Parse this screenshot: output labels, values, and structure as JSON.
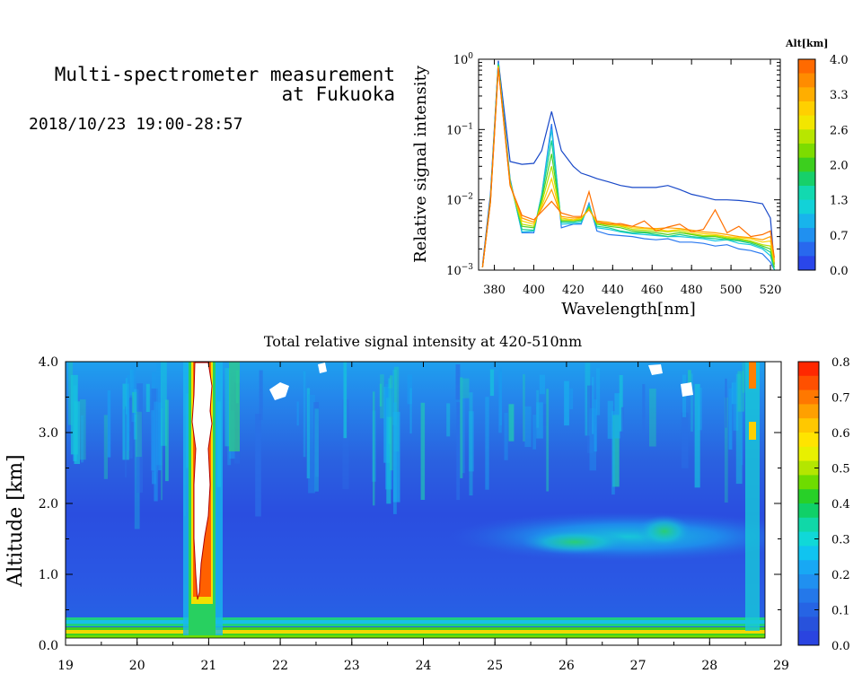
{
  "header": {
    "title_line1": "Multi-spectrometer measurement",
    "title_line2": "at Fukuoka",
    "datetime": "2018/10/23 19:00-28:57"
  },
  "chart_data": [
    {
      "type": "line",
      "xlabel": "Wavelength[nm]",
      "ylabel": "Relative signal intensity",
      "x_ticks": [
        "380",
        "400",
        "420",
        "440",
        "460",
        "480",
        "500",
        "520"
      ],
      "y_ticks": [
        "10^-3",
        "10^-2",
        "10^-1",
        "10^0"
      ],
      "y_scale": "log",
      "xlim": [
        372,
        525
      ],
      "ylim": [
        0.001,
        1
      ],
      "colorbar": {
        "title": "Alt[km]",
        "labels": [
          "4.0",
          "3.3",
          "2.6",
          "2.0",
          "1.3",
          "0.7",
          "0.0"
        ],
        "colors": [
          "#ff6a00",
          "#ff8c00",
          "#ffae00",
          "#ffd000",
          "#f2e600",
          "#b8e600",
          "#7ddc00",
          "#3ccf1e",
          "#17d06a",
          "#12d9b0",
          "#12d2d8",
          "#18b4ec",
          "#2090f0",
          "#2868ee",
          "#2a46ea"
        ]
      },
      "x": [
        374,
        378,
        382,
        388,
        394,
        400,
        404,
        409,
        414,
        420,
        424,
        428,
        432,
        438,
        444,
        450,
        456,
        462,
        468,
        474,
        480,
        486,
        492,
        498,
        504,
        510,
        516,
        520,
        522
      ],
      "series": [
        {
          "color": "#1848c8",
          "values": [
            0.0012,
            0.012,
            0.95,
            0.035,
            0.032,
            0.033,
            0.05,
            0.18,
            0.05,
            0.03,
            0.024,
            0.022,
            0.02,
            0.018,
            0.016,
            0.015,
            0.015,
            0.015,
            0.016,
            0.014,
            0.012,
            0.011,
            0.01,
            0.01,
            0.0098,
            0.0094,
            0.0088,
            0.0055,
            0.0012
          ]
        },
        {
          "color": "#2878f0",
          "values": [
            0.0011,
            0.01,
            0.9,
            0.02,
            0.0034,
            0.0034,
            0.012,
            0.12,
            0.004,
            0.0045,
            0.0045,
            0.009,
            0.0036,
            0.0032,
            0.0031,
            0.003,
            0.0028,
            0.0027,
            0.0028,
            0.0025,
            0.0025,
            0.0024,
            0.0022,
            0.0023,
            0.002,
            0.0019,
            0.0017,
            0.0013,
            0.001
          ]
        },
        {
          "color": "#18c8e0",
          "values": [
            0.0011,
            0.01,
            0.88,
            0.019,
            0.0035,
            0.0036,
            0.012,
            0.1,
            0.0045,
            0.0046,
            0.0047,
            0.0085,
            0.004,
            0.0038,
            0.0035,
            0.0033,
            0.0032,
            0.0031,
            0.003,
            0.003,
            0.0029,
            0.0028,
            0.0026,
            0.0027,
            0.0024,
            0.0023,
            0.002,
            0.0016,
            0.001
          ]
        },
        {
          "color": "#18d08c",
          "values": [
            0.0011,
            0.01,
            0.85,
            0.018,
            0.0038,
            0.0037,
            0.011,
            0.07,
            0.0048,
            0.0048,
            0.005,
            0.008,
            0.0042,
            0.004,
            0.0036,
            0.0034,
            0.0034,
            0.0032,
            0.003,
            0.0032,
            0.003,
            0.0029,
            0.0028,
            0.0027,
            0.0026,
            0.0024,
            0.0021,
            0.0018,
            0.001
          ]
        },
        {
          "color": "#50d020",
          "values": [
            0.0011,
            0.01,
            0.82,
            0.018,
            0.0042,
            0.004,
            0.01,
            0.045,
            0.005,
            0.005,
            0.0052,
            0.0078,
            0.0045,
            0.0042,
            0.004,
            0.0036,
            0.0035,
            0.0034,
            0.0032,
            0.0034,
            0.0032,
            0.003,
            0.003,
            0.0028,
            0.0027,
            0.0025,
            0.0022,
            0.002,
            0.0011
          ]
        },
        {
          "color": "#b8e000",
          "values": [
            0.0011,
            0.0095,
            0.8,
            0.017,
            0.0045,
            0.0042,
            0.009,
            0.03,
            0.0052,
            0.0051,
            0.0053,
            0.0075,
            0.0046,
            0.0044,
            0.0042,
            0.0038,
            0.0037,
            0.0036,
            0.0035,
            0.0036,
            0.0033,
            0.0031,
            0.0031,
            0.0029,
            0.0028,
            0.0026,
            0.0023,
            0.0022,
            0.0012
          ]
        },
        {
          "color": "#ffd000",
          "values": [
            0.0011,
            0.0095,
            0.78,
            0.017,
            0.005,
            0.0045,
            0.008,
            0.02,
            0.0055,
            0.0052,
            0.0055,
            0.0072,
            0.0048,
            0.0046,
            0.0043,
            0.004,
            0.0039,
            0.0038,
            0.0036,
            0.0038,
            0.0035,
            0.0033,
            0.0032,
            0.003,
            0.0029,
            0.0028,
            0.0025,
            0.0026,
            0.0013
          ]
        },
        {
          "color": "#ffa000",
          "values": [
            0.0011,
            0.0093,
            0.76,
            0.016,
            0.0055,
            0.0048,
            0.0075,
            0.014,
            0.0058,
            0.0055,
            0.0056,
            0.0072,
            0.005,
            0.0048,
            0.0044,
            0.0042,
            0.004,
            0.0039,
            0.004,
            0.0039,
            0.0037,
            0.0035,
            0.0034,
            0.0032,
            0.003,
            0.0029,
            0.0027,
            0.003,
            0.0014
          ]
        },
        {
          "color": "#ff7000",
          "values": [
            0.0011,
            0.0092,
            0.75,
            0.016,
            0.006,
            0.0052,
            0.0068,
            0.0095,
            0.0065,
            0.0058,
            0.0058,
            0.013,
            0.0048,
            0.0045,
            0.0046,
            0.0042,
            0.005,
            0.0036,
            0.0041,
            0.0045,
            0.0035,
            0.0038,
            0.0072,
            0.0034,
            0.0042,
            0.003,
            0.0032,
            0.0036,
            0.0015
          ]
        }
      ]
    },
    {
      "type": "heatmap",
      "title": "Total relative signal intensity at 420-510nm",
      "xlabel": "",
      "ylabel": "Altitude [km]",
      "x_ticks": [
        "19",
        "20",
        "21",
        "22",
        "23",
        "24",
        "25",
        "26",
        "27",
        "28",
        "29"
      ],
      "y_ticks": [
        "0.0",
        "1.0",
        "2.0",
        "3.0",
        "4.0"
      ],
      "xlim": [
        19,
        29
      ],
      "ylim": [
        0,
        4
      ],
      "colorbar": {
        "labels": [
          "0.8",
          "0.7",
          "0.6",
          "0.5",
          "0.4",
          "0.3",
          "0.2",
          "0.1",
          "0.0"
        ],
        "colors": [
          "#ff2800",
          "#ff5000",
          "#ff7800",
          "#ffa000",
          "#ffc800",
          "#ffe400",
          "#e8f000",
          "#b4e600",
          "#6edc00",
          "#28d028",
          "#10d068",
          "#10d8a8",
          "#10d8d8",
          "#10c4f0",
          "#18a8f4",
          "#2090f0",
          "#2478ea",
          "#2664e4",
          "#2852dc",
          "#2a44e0"
        ]
      }
    }
  ]
}
